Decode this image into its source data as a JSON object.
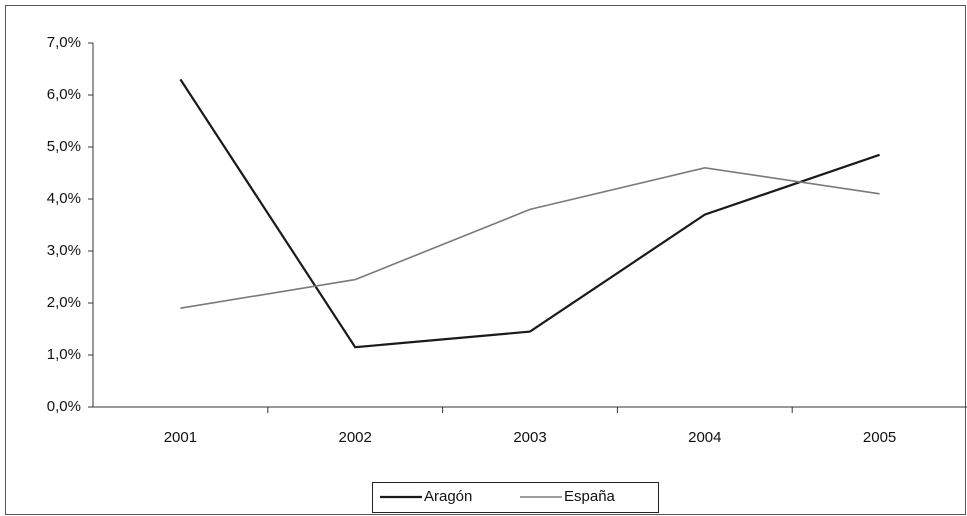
{
  "chart_data": {
    "type": "line",
    "categories": [
      "2001",
      "2002",
      "2003",
      "2004",
      "2005"
    ],
    "series": [
      {
        "name": "Aragón",
        "color": "#1a1a1a",
        "values": [
          6.3,
          1.15,
          1.45,
          3.7,
          4.85
        ]
      },
      {
        "name": "España",
        "color": "#7a7a7a",
        "values": [
          1.9,
          2.45,
          3.8,
          4.6,
          4.1
        ]
      }
    ],
    "ylim": [
      0,
      7
    ],
    "yticks": [
      {
        "value": 0,
        "label": "0,0%"
      },
      {
        "value": 1,
        "label": "1,0%"
      },
      {
        "value": 2,
        "label": "2,0%"
      },
      {
        "value": 3,
        "label": "3,0%"
      },
      {
        "value": 4,
        "label": "4,0%"
      },
      {
        "value": 5,
        "label": "5,0%"
      },
      {
        "value": 6,
        "label": "6,0%"
      },
      {
        "value": 7,
        "label": "7,0%"
      }
    ],
    "legend": "bottom"
  }
}
